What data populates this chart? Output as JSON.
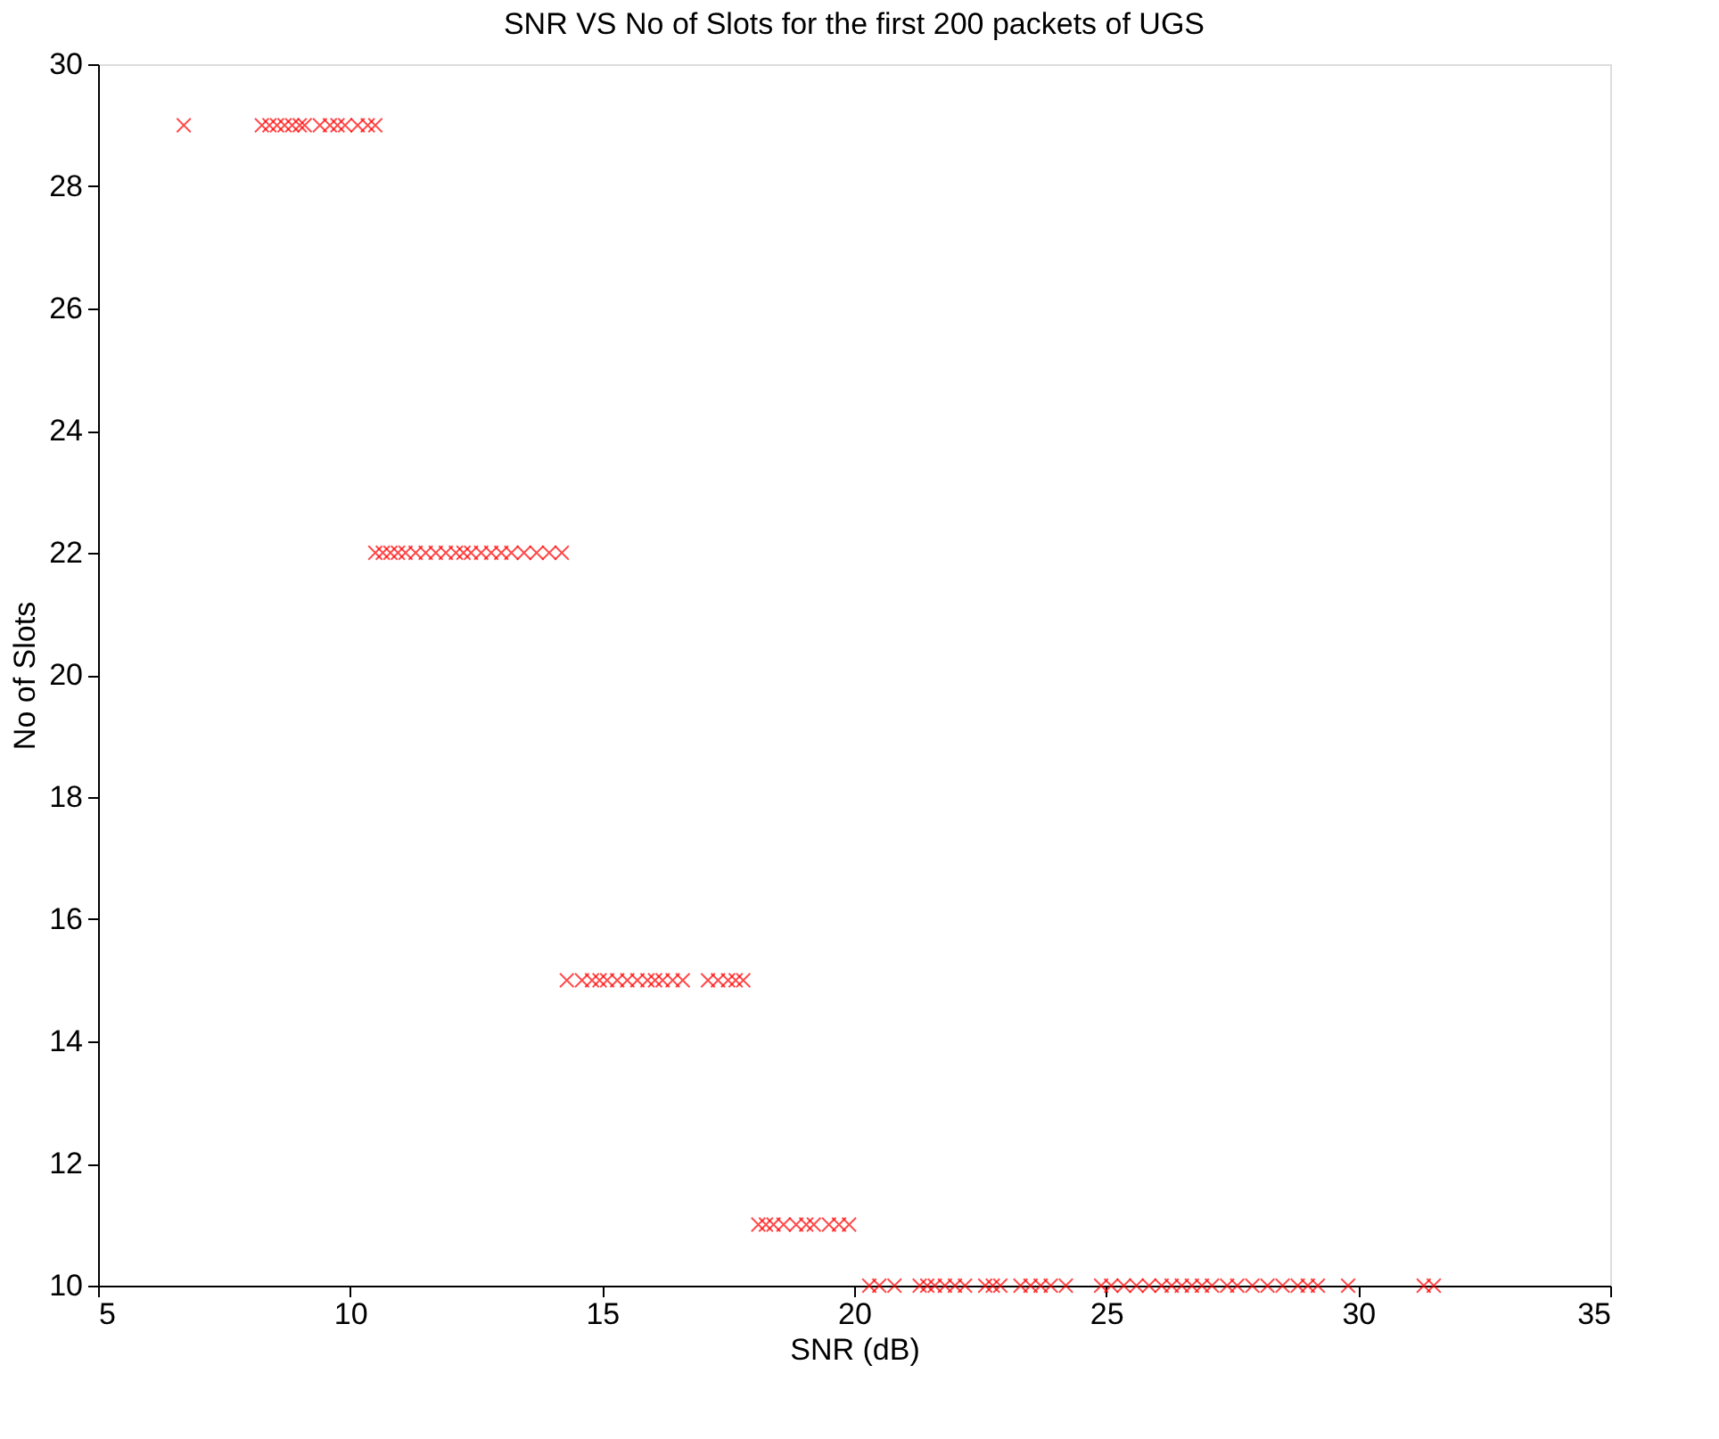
{
  "chart_data": {
    "type": "scatter",
    "title": "SNR VS No of Slots for the first 200 packets of UGS",
    "xlabel": "SNR (dB)",
    "ylabel": "No of Slots",
    "marker": "cross",
    "grid": false,
    "xlim": [
      5,
      35
    ],
    "xticks": [
      5,
      10,
      15,
      20,
      25,
      30,
      35
    ],
    "ylim": [
      10,
      30
    ],
    "yticks": [
      10,
      12,
      14,
      16,
      18,
      20,
      22,
      24,
      26,
      28,
      30
    ],
    "series": [
      {
        "color": "#ff0000",
        "x": [
          6.7,
          8.25,
          8.4,
          8.55,
          8.7,
          8.85,
          9.0,
          9.1,
          9.4,
          9.6,
          9.75,
          9.9,
          10.15,
          10.35,
          10.5,
          10.5,
          10.65,
          10.8,
          10.95,
          11.1,
          11.3,
          11.5,
          11.7,
          11.9,
          12.1,
          12.25,
          12.4,
          12.6,
          12.8,
          13.0,
          13.2,
          13.45,
          13.7,
          13.95,
          14.2,
          14.3,
          14.6,
          14.8,
          14.95,
          15.1,
          15.3,
          15.5,
          15.7,
          15.9,
          16.05,
          16.2,
          16.4,
          16.6,
          17.1,
          17.3,
          17.5,
          17.65,
          17.8,
          18.1,
          18.25,
          18.4,
          18.6,
          18.85,
          19.05,
          19.2,
          19.5,
          19.7,
          19.9,
          20.3,
          20.5,
          20.8,
          21.3,
          21.45,
          21.6,
          21.8,
          22.0,
          22.2,
          22.6,
          22.75,
          22.9,
          23.3,
          23.5,
          23.7,
          23.9,
          24.2,
          24.9,
          25.1,
          25.35,
          25.6,
          25.85,
          26.1,
          26.3,
          26.5,
          26.7,
          26.9,
          27.1,
          27.4,
          27.6,
          27.9,
          28.2,
          28.5,
          28.8,
          29.0,
          29.2,
          29.8,
          31.3,
          31.5
        ],
        "values": [
          29,
          29,
          29,
          29,
          29,
          29,
          29,
          29,
          29,
          29,
          29,
          29,
          29,
          29,
          29,
          22,
          22,
          22,
          22,
          22,
          22,
          22,
          22,
          22,
          22,
          22,
          22,
          22,
          22,
          22,
          22,
          22,
          22,
          22,
          22,
          15,
          15,
          15,
          15,
          15,
          15,
          15,
          15,
          15,
          15,
          15,
          15,
          15,
          15,
          15,
          15,
          15,
          15,
          11,
          11,
          11,
          11,
          11,
          11,
          11,
          11,
          11,
          11,
          10,
          10,
          10,
          10,
          10,
          10,
          10,
          10,
          10,
          10,
          10,
          10,
          10,
          10,
          10,
          10,
          10,
          10,
          10,
          10,
          10,
          10,
          10,
          10,
          10,
          10,
          10,
          10,
          10,
          10,
          10,
          10,
          10,
          10,
          10,
          10,
          10,
          10,
          10
        ]
      }
    ]
  }
}
